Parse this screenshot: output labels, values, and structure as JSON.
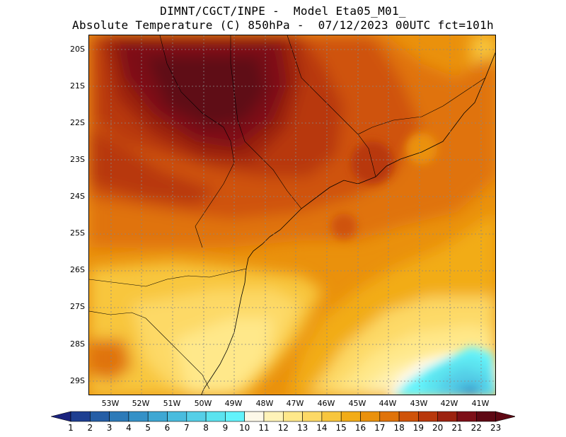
{
  "header": {
    "line1": "DIMNT/CGCT/INPE -  Model Eta05_M01_",
    "line2": "Absolute Temperature (C) 850hPa -  07/12/2023 00UTC fct=101h"
  },
  "map": {
    "lat_labels": [
      "20S",
      "21S",
      "22S",
      "23S",
      "24S",
      "25S",
      "26S",
      "27S",
      "28S",
      "29S"
    ],
    "lon_labels": [
      "53W",
      "52W",
      "51W",
      "50W",
      "49W",
      "48W",
      "47W",
      "46W",
      "45W",
      "44W",
      "43W",
      "42W",
      "41W"
    ],
    "extent": {
      "lon_min": -53.8,
      "lon_max": -40.6,
      "lat_min": -29.4,
      "lat_max": -19.6
    }
  },
  "colorbar": {
    "labels": [
      "1",
      "2",
      "3",
      "4",
      "5",
      "6",
      "7",
      "8",
      "9",
      "10",
      "11",
      "12",
      "13",
      "14",
      "15",
      "16",
      "17",
      "18",
      "19",
      "20",
      "21",
      "22",
      "23"
    ],
    "colors": [
      "#1a237e",
      "#1e3f91",
      "#255ea6",
      "#2d7ab8",
      "#3591c7",
      "#3ea7d3",
      "#49bcde",
      "#55cfe7",
      "#5be3ef",
      "#63f3fb",
      "#fdf8e8",
      "#fff3b8",
      "#ffe88a",
      "#fdd966",
      "#f8c63d",
      "#f2ac18",
      "#ea910c",
      "#e0730a",
      "#cf530a",
      "#b8380c",
      "#9c2210",
      "#7d0f18",
      "#5e0713"
    ]
  }
}
